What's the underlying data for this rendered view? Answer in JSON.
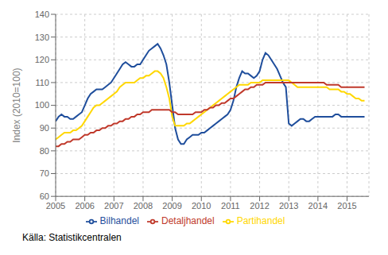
{
  "chart_data": {
    "type": "line",
    "ylabel": "Index (2010=100)",
    "source": "Källa: Statistikcentralen",
    "x": [
      2005.0,
      2005.1,
      2005.2,
      2005.3,
      2005.4,
      2005.5,
      2005.6,
      2005.7,
      2005.8,
      2005.9,
      2006.0,
      2006.1,
      2006.2,
      2006.3,
      2006.4,
      2006.5,
      2006.6,
      2006.7,
      2006.8,
      2006.9,
      2007.0,
      2007.1,
      2007.2,
      2007.3,
      2007.4,
      2007.5,
      2007.6,
      2007.7,
      2007.8,
      2007.9,
      2008.0,
      2008.1,
      2008.2,
      2008.3,
      2008.4,
      2008.5,
      2008.6,
      2008.7,
      2008.8,
      2008.9,
      2009.0,
      2009.1,
      2009.2,
      2009.3,
      2009.4,
      2009.5,
      2009.6,
      2009.7,
      2009.8,
      2009.9,
      2010.0,
      2010.1,
      2010.2,
      2010.3,
      2010.4,
      2010.5,
      2010.6,
      2010.7,
      2010.8,
      2010.9,
      2011.0,
      2011.1,
      2011.2,
      2011.3,
      2011.4,
      2011.5,
      2011.6,
      2011.7,
      2011.8,
      2011.9,
      2012.0,
      2012.1,
      2012.2,
      2012.3,
      2012.4,
      2012.5,
      2012.6,
      2012.7,
      2012.8,
      2012.9,
      2013.0,
      2013.1,
      2013.2,
      2013.3,
      2013.4,
      2013.5,
      2013.6,
      2013.7,
      2013.8,
      2013.9,
      2014.0,
      2014.1,
      2014.2,
      2014.3,
      2014.4,
      2014.5,
      2014.6,
      2014.7,
      2014.8,
      2014.9,
      2015.0,
      2015.1,
      2015.2,
      2015.3,
      2015.4,
      2015.5,
      2015.6
    ],
    "series": [
      {
        "name": "Bilhandel",
        "color": "#1f4e9c",
        "values": [
          93,
          95,
          96,
          95,
          95,
          94,
          94,
          95,
          96,
          97,
          100,
          103,
          105,
          106,
          107,
          107,
          107,
          108,
          109,
          110,
          112,
          114,
          116,
          118,
          119,
          118,
          117,
          117,
          118,
          118,
          120,
          122,
          124,
          125,
          126,
          127,
          125,
          122,
          118,
          110,
          100,
          90,
          85,
          83,
          83,
          85,
          86,
          87,
          87,
          87,
          88,
          88,
          89,
          90,
          91,
          92,
          93,
          94,
          95,
          96,
          98,
          102,
          108,
          112,
          115,
          114,
          114,
          113,
          112,
          113,
          115,
          120,
          123,
          122,
          120,
          118,
          116,
          113,
          110,
          108,
          92,
          91,
          92,
          93,
          94,
          94,
          93,
          93,
          94,
          95,
          95,
          95,
          95,
          95,
          95,
          95,
          96,
          96,
          95,
          95,
          95,
          95,
          95,
          95,
          95,
          95,
          95
        ]
      },
      {
        "name": "Partihandel",
        "color": "#ffd700",
        "values": [
          85,
          86,
          87,
          88,
          88,
          88,
          89,
          89,
          90,
          91,
          93,
          95,
          97,
          99,
          100,
          100,
          101,
          102,
          103,
          104,
          105,
          106,
          108,
          109,
          110,
          110,
          110,
          110,
          111,
          112,
          112,
          113,
          113,
          114,
          115,
          115,
          114,
          112,
          108,
          103,
          95,
          91,
          91,
          91,
          91,
          92,
          92,
          93,
          94,
          95,
          96,
          97,
          98,
          99,
          100,
          101,
          102,
          103,
          104,
          105,
          106,
          107,
          108,
          109,
          109,
          109,
          109,
          110,
          110,
          110,
          110,
          111,
          111,
          111,
          111,
          111,
          111,
          111,
          111,
          111,
          111,
          110,
          109,
          108,
          108,
          108,
          108,
          108,
          108,
          108,
          108,
          108,
          108,
          108,
          107,
          107,
          107,
          107,
          106,
          106,
          105,
          105,
          104,
          103,
          103,
          102,
          102
        ]
      },
      {
        "name": "Detaljhandel",
        "color": "#c0392b",
        "values": [
          82,
          82,
          83,
          83,
          84,
          84,
          85,
          85,
          85,
          86,
          87,
          87,
          88,
          88,
          89,
          89,
          90,
          90,
          91,
          91,
          92,
          92,
          93,
          93,
          94,
          94,
          95,
          95,
          96,
          96,
          97,
          97,
          97,
          98,
          98,
          98,
          98,
          98,
          98,
          98,
          97,
          97,
          96,
          96,
          96,
          96,
          96,
          96,
          97,
          97,
          97,
          98,
          98,
          99,
          99,
          100,
          100,
          101,
          101,
          102,
          103,
          103,
          104,
          105,
          106,
          107,
          107,
          108,
          108,
          109,
          109,
          109,
          110,
          110,
          110,
          110,
          110,
          110,
          110,
          110,
          110,
          110,
          110,
          110,
          110,
          110,
          110,
          110,
          110,
          110,
          110,
          110,
          110,
          109,
          109,
          109,
          109,
          109,
          108,
          108,
          108,
          108,
          108,
          108,
          108,
          108,
          108
        ]
      }
    ],
    "xlim": [
      2005.0,
      2015.75
    ],
    "xticks": [
      2005,
      2006,
      2007,
      2008,
      2009,
      2010,
      2011,
      2012,
      2013,
      2014,
      2015
    ],
    "ylim": [
      60,
      140
    ],
    "yticks": [
      60,
      70,
      80,
      90,
      100,
      110,
      120,
      130,
      140
    ],
    "grid": true,
    "legend": "bottom"
  }
}
